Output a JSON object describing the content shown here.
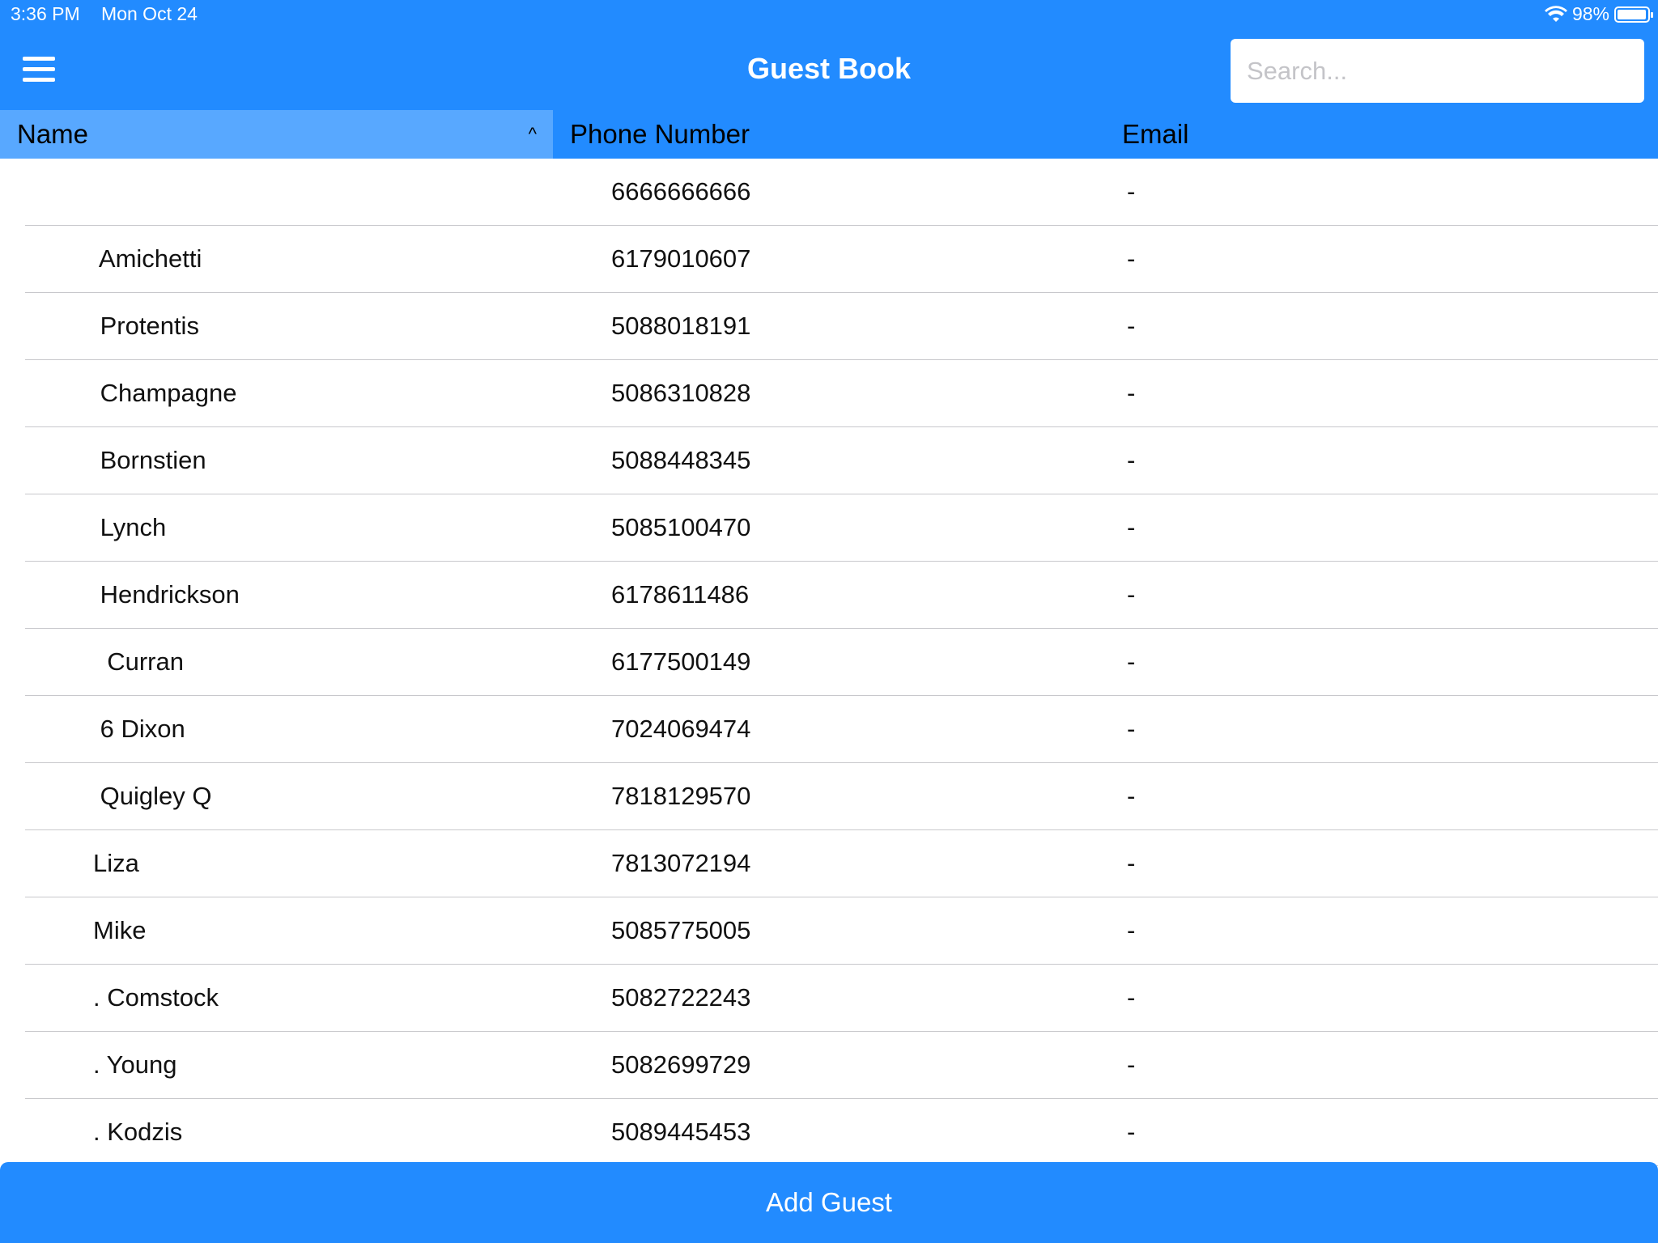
{
  "status_bar": {
    "time": "3:36 PM",
    "date": "Mon Oct 24",
    "battery": "98%",
    "battery_level": 0.98
  },
  "header": {
    "title": "Guest Book",
    "search_placeholder": "Search...",
    "menu_icon": "hamburger-icon"
  },
  "columns": [
    {
      "label": "Name",
      "sorted": "ascending"
    },
    {
      "label": "Phone Number"
    },
    {
      "label": "Email"
    }
  ],
  "colors": {
    "primary": "#228bff",
    "sorted_header": "#58a8ff"
  },
  "rows": [
    {
      "name": "",
      "phone": "6666666666",
      "email": "-"
    },
    {
      "name": " Amichetti",
      "phone": "6179010607",
      "email": "-"
    },
    {
      "name": " Protentis",
      "phone": "5088018191",
      "email": "-"
    },
    {
      "name": " Champagne",
      "phone": "5086310828",
      "email": "-"
    },
    {
      "name": " Bornstien",
      "phone": "5088448345",
      "email": "-"
    },
    {
      "name": " Lynch",
      "phone": "5085100470",
      "email": "-"
    },
    {
      "name": " Hendrickson",
      "phone": "6178611486",
      "email": "-"
    },
    {
      "name": "  Curran",
      "phone": "6177500149",
      "email": "-"
    },
    {
      "name": " 6 Dixon",
      "phone": "7024069474",
      "email": "-"
    },
    {
      "name": " Quigley Q",
      "phone": "7818129570",
      "email": "-"
    },
    {
      "name": "Liza",
      "phone": "7813072194",
      "email": "-"
    },
    {
      "name": "Mike",
      "phone": "5085775005",
      "email": "-"
    },
    {
      "name": ". Comstock",
      "phone": "5082722243",
      "email": "-"
    },
    {
      "name": ". Young",
      "phone": "5082699729",
      "email": "-"
    },
    {
      "name": ". Kodzis",
      "phone": "5089445453",
      "email": "-"
    }
  ],
  "footer": {
    "add_label": "Add Guest"
  }
}
